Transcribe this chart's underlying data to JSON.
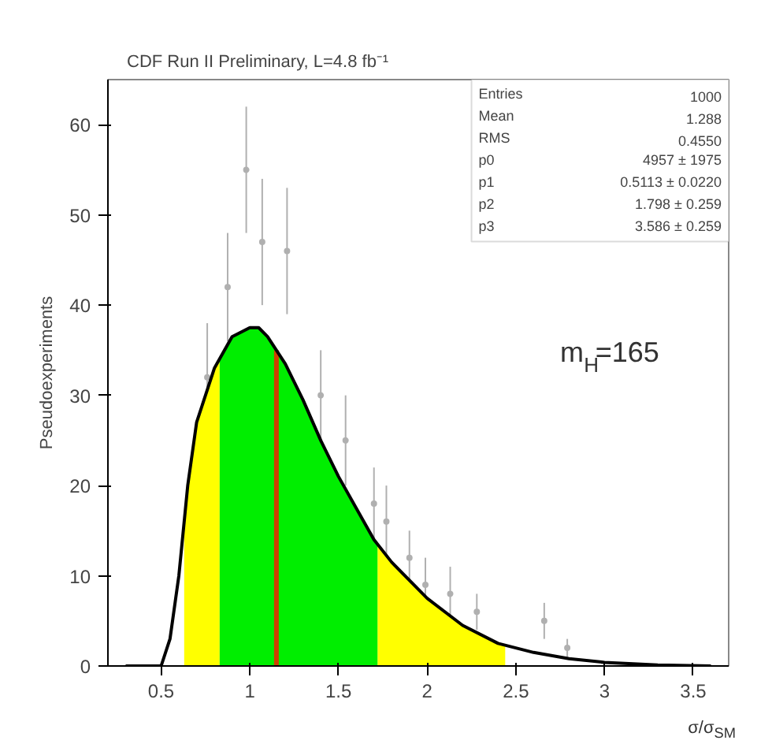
{
  "chart_data": {
    "type": "line",
    "title": "CDF Run II Preliminary, L=4.8 fb⁻¹",
    "xlabel": "σ/σ$_{SM}$",
    "ylabel": "Pseudoexperiments",
    "xlim": [
      0.2,
      3.7
    ],
    "ylim": [
      0,
      65
    ],
    "xticks": [
      0.5,
      1,
      1.5,
      2,
      2.5,
      3,
      3.5
    ],
    "yticks": [
      0,
      10,
      20,
      30,
      40,
      50,
      60
    ],
    "grid": false,
    "series": [
      {
        "type": "area",
        "color": "#ffff00",
        "x": [
          0.63,
          0.65,
          0.7,
          0.8,
          0.83,
          1.2,
          1.72,
          1.8,
          2.0,
          2.2,
          2.4,
          2.44
        ],
        "values": [
          16,
          20,
          27,
          33,
          34,
          null,
          13.5,
          11.5,
          7.5,
          4.5,
          2.5,
          2.3
        ]
      },
      {
        "type": "area",
        "color": "#00ee00",
        "x": [
          0.83,
          0.9,
          1.0,
          1.05,
          1.1,
          1.2,
          1.3,
          1.4,
          1.5,
          1.6,
          1.7,
          1.72
        ],
        "values": [
          34,
          36.5,
          37.5,
          37.5,
          36.5,
          33.5,
          29.5,
          25,
          21,
          17.5,
          14,
          13.5
        ]
      },
      {
        "color": "#000000",
        "x": [
          0.3,
          0.5,
          0.55,
          0.6,
          0.65,
          0.7,
          0.8,
          0.9,
          1.0,
          1.05,
          1.1,
          1.2,
          1.3,
          1.4,
          1.5,
          1.6,
          1.7,
          1.8,
          2.0,
          2.2,
          2.4,
          2.6,
          2.8,
          3.0,
          3.3,
          3.6
        ],
        "values": [
          0,
          0,
          3,
          10,
          20,
          27,
          33,
          36.5,
          37.5,
          37.5,
          36.5,
          33.5,
          29.5,
          25,
          21,
          17.5,
          14,
          11.5,
          7.5,
          4.5,
          2.5,
          1.5,
          0.8,
          0.4,
          0.1,
          0
        ]
      },
      {
        "type": "scatter",
        "color": "#b0b0b0",
        "marker": "circle",
        "x": [
          0.76,
          0.875,
          0.98,
          1.07,
          1.21,
          1.4,
          1.54,
          1.7,
          1.77,
          1.9,
          1.99,
          2.13,
          2.28,
          2.66,
          2.79
        ],
        "values": [
          32,
          42,
          55,
          47,
          46,
          30,
          25,
          18,
          16,
          12,
          9,
          8,
          6,
          5,
          2
        ],
        "errors": [
          6,
          6,
          7,
          7,
          7,
          5,
          5,
          4,
          4,
          3,
          3,
          3,
          2,
          2,
          1
        ]
      }
    ],
    "ref_lines": [
      {
        "axis": "x",
        "value": 1.15,
        "color": "#d04000"
      }
    ],
    "annotations": [
      "m$_{H}$=165",
      "Entries 1000",
      "Mean 1.288",
      "RMS 0.4550",
      "p0 4957 ± 1975",
      "p1 0.5113 ± 0.0220",
      "p2 1.798 ± 0.259",
      "p3 3.586 ± 0.259"
    ]
  }
}
